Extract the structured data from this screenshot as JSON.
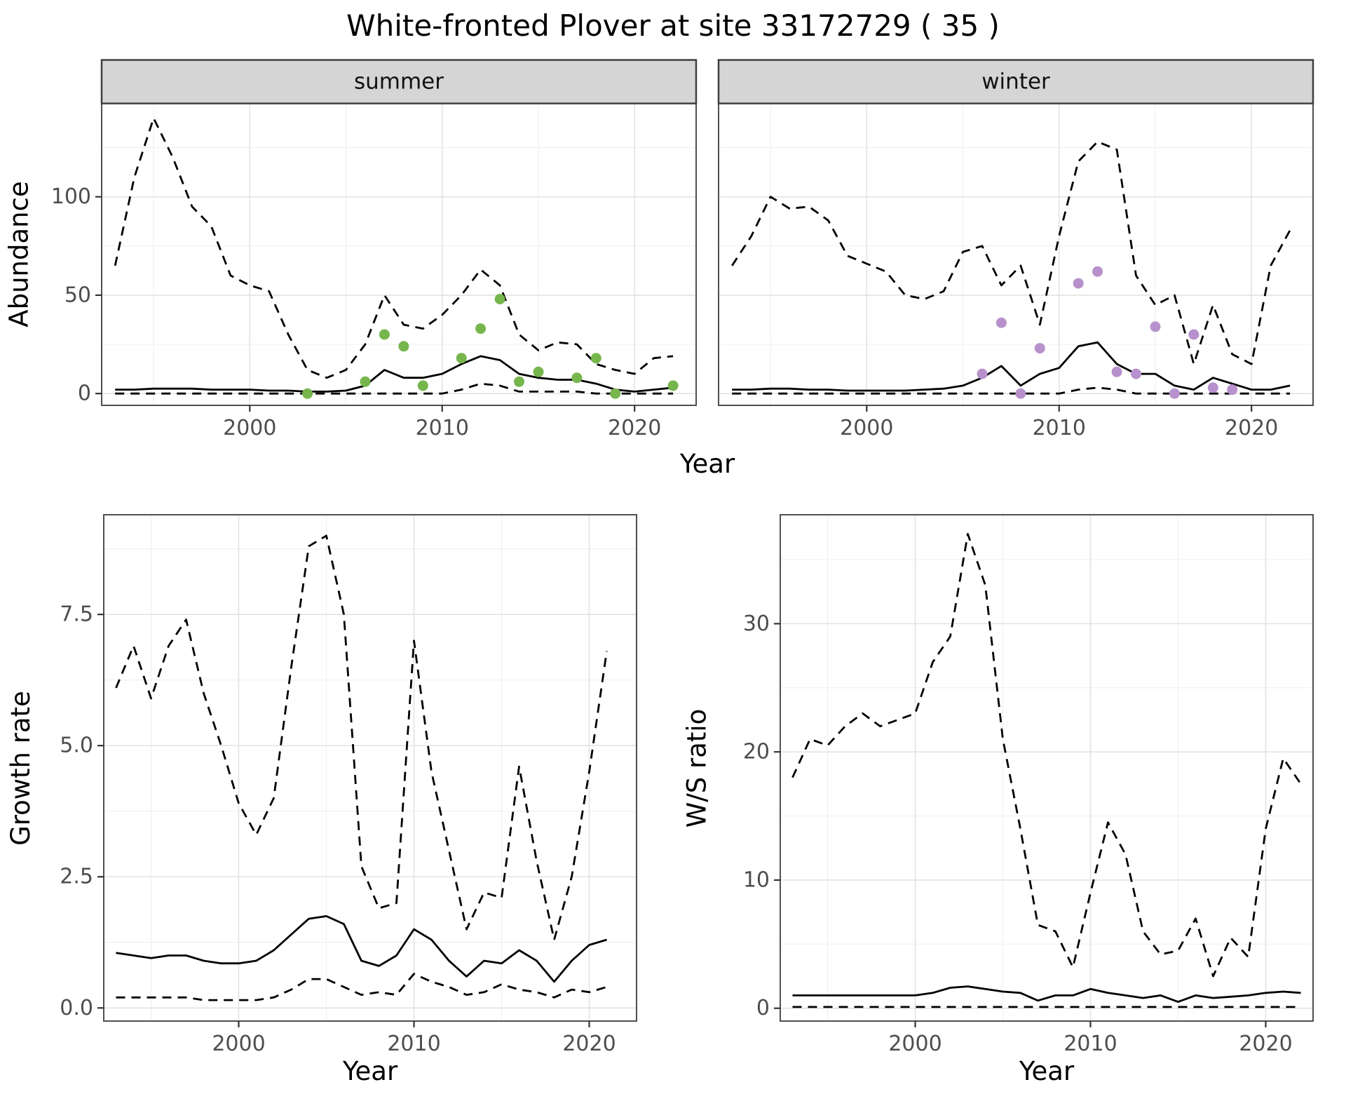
{
  "title": "White-fronted Plover at site 33172729 ( 35 )",
  "axes": {
    "abundance": "Abundance",
    "year": "Year",
    "growth_rate": "Growth rate",
    "ws_ratio": "W/S ratio"
  },
  "theme": {
    "strip_bg": "#d5d5d5",
    "strip_border": "#3f3f3f",
    "panel_border": "#4f4f4f",
    "grid_major": "#e3e3e3",
    "grid_minor": "#f0f0f0",
    "line": "#000000",
    "tick_text": "#4d4d4d",
    "tick_mark": "#333333",
    "summer_point": "#76b64c",
    "winter_point": "#b891cc"
  },
  "chart_data": [
    {
      "id": "abundance-summer",
      "type": "line",
      "facet": "summer",
      "xlabel": "Year",
      "ylabel": "Abundance",
      "xlim": [
        1992.3,
        2023.2
      ],
      "ylim": [
        -6,
        148
      ],
      "grid": true,
      "legend": "none",
      "xticks": [
        {
          "v": 2000,
          "label": "2000"
        },
        {
          "v": 2010,
          "label": "2010"
        },
        {
          "v": 2020,
          "label": "2020"
        }
      ],
      "yticks": [
        {
          "v": 0,
          "label": "0"
        },
        {
          "v": 50,
          "label": "50"
        },
        {
          "v": 100,
          "label": "100"
        }
      ],
      "xticks_minor": [
        1995,
        2005,
        2015
      ],
      "yticks_minor": [
        25,
        75,
        125
      ],
      "x": [
        1993,
        1994,
        1995,
        1996,
        1997,
        1998,
        1999,
        2000,
        2001,
        2002,
        2003,
        2004,
        2005,
        2006,
        2007,
        2008,
        2009,
        2010,
        2011,
        2012,
        2013,
        2014,
        2015,
        2016,
        2017,
        2018,
        2019,
        2020,
        2021,
        2022
      ],
      "series": [
        {
          "name": "upper_95ci",
          "style": "dashed",
          "values": [
            65,
            110,
            140,
            120,
            95,
            85,
            60,
            55,
            52,
            30,
            12,
            8,
            12,
            25,
            50,
            35,
            33,
            40,
            50,
            63,
            55,
            30,
            22,
            26,
            25,
            15,
            12,
            10,
            18,
            19
          ]
        },
        {
          "name": "median",
          "style": "solid",
          "values": [
            2,
            2,
            2.5,
            2.5,
            2.5,
            2,
            2,
            2,
            1.5,
            1.5,
            1,
            1,
            1.5,
            4,
            12,
            8,
            8,
            10,
            15,
            19,
            17,
            10,
            8,
            7,
            7,
            5,
            2,
            1,
            2,
            3
          ]
        },
        {
          "name": "lower_95ci",
          "style": "dashed",
          "values": [
            0,
            0,
            0,
            0,
            0,
            0,
            0,
            0,
            0,
            0,
            0,
            0,
            0,
            0,
            0,
            0,
            0,
            0,
            2,
            5,
            4,
            1,
            1,
            1,
            1,
            0,
            0,
            0,
            0,
            0
          ]
        }
      ],
      "points": {
        "name": "observed-count",
        "color_key": "summer_point",
        "x": [
          2003,
          2006,
          2007,
          2008,
          2009,
          2011,
          2012,
          2013,
          2014,
          2015,
          2017,
          2018,
          2019,
          2022
        ],
        "y": [
          0,
          6,
          30,
          24,
          4,
          18,
          33,
          48,
          6,
          11,
          8,
          18,
          0,
          4
        ]
      }
    },
    {
      "id": "abundance-winter",
      "type": "line",
      "facet": "winter",
      "xlabel": "Year",
      "ylabel": "Abundance",
      "xlim": [
        1992.3,
        2023.2
      ],
      "ylim": [
        -6,
        148
      ],
      "grid": true,
      "legend": "none",
      "xticks": [
        {
          "v": 2000,
          "label": "2000"
        },
        {
          "v": 2010,
          "label": "2010"
        },
        {
          "v": 2020,
          "label": "2020"
        }
      ],
      "yticks": [
        {
          "v": 0,
          "label": "0"
        },
        {
          "v": 50,
          "label": "50"
        },
        {
          "v": 100,
          "label": "100"
        }
      ],
      "xticks_minor": [
        1995,
        2005,
        2015
      ],
      "yticks_minor": [
        25,
        75,
        125
      ],
      "x": [
        1993,
        1994,
        1995,
        1996,
        1997,
        1998,
        1999,
        2000,
        2001,
        2002,
        2003,
        2004,
        2005,
        2006,
        2007,
        2008,
        2009,
        2010,
        2011,
        2012,
        2013,
        2014,
        2015,
        2016,
        2017,
        2018,
        2019,
        2020,
        2021,
        2022
      ],
      "series": [
        {
          "name": "upper_95ci",
          "style": "dashed",
          "values": [
            65,
            80,
            100,
            94,
            95,
            88,
            70,
            66,
            62,
            50,
            48,
            52,
            72,
            75,
            55,
            65,
            35,
            80,
            118,
            128,
            124,
            60,
            45,
            50,
            15,
            45,
            20,
            15,
            65,
            83
          ]
        },
        {
          "name": "median",
          "style": "solid",
          "values": [
            2,
            2,
            2.5,
            2.5,
            2,
            2,
            1.5,
            1.5,
            1.5,
            1.5,
            2,
            2.5,
            4,
            8,
            14,
            4,
            10,
            13,
            24,
            26,
            15,
            10,
            10,
            4,
            2,
            8,
            5,
            2,
            2,
            4
          ]
        },
        {
          "name": "lower_95ci",
          "style": "dashed",
          "values": [
            0,
            0,
            0,
            0,
            0,
            0,
            0,
            0,
            0,
            0,
            0,
            0,
            0,
            0,
            0,
            0,
            0,
            0,
            2,
            3,
            2,
            0,
            0,
            0,
            0,
            0,
            0,
            0,
            0,
            0
          ]
        }
      ],
      "points": {
        "name": "observed-count",
        "color_key": "winter_point",
        "x": [
          2006,
          2007,
          2008,
          2009,
          2011,
          2012,
          2013,
          2014,
          2015,
          2016,
          2017,
          2018,
          2019
        ],
        "y": [
          10,
          36,
          0,
          23,
          56,
          62,
          11,
          10,
          34,
          0,
          30,
          3,
          2
        ]
      }
    },
    {
      "id": "growth-rate",
      "type": "line",
      "facet": null,
      "xlabel": "Year",
      "ylabel": "Growth rate",
      "xlim": [
        1992.3,
        2022.7
      ],
      "ylim": [
        -0.25,
        9.4
      ],
      "grid": true,
      "legend": "none",
      "xticks": [
        {
          "v": 2000,
          "label": "2000"
        },
        {
          "v": 2010,
          "label": "2010"
        },
        {
          "v": 2020,
          "label": "2020"
        }
      ],
      "yticks": [
        {
          "v": 0,
          "label": "0.0"
        },
        {
          "v": 2.5,
          "label": "2.5"
        },
        {
          "v": 5,
          "label": "5.0"
        },
        {
          "v": 7.5,
          "label": "7.5"
        }
      ],
      "xticks_minor": [
        1995,
        2005,
        2015
      ],
      "yticks_minor": [
        1.25,
        3.75,
        6.25,
        8.75
      ],
      "x": [
        1993,
        1994,
        1995,
        1996,
        1997,
        1998,
        1999,
        2000,
        2001,
        2002,
        2003,
        2004,
        2005,
        2006,
        2007,
        2008,
        2009,
        2010,
        2011,
        2012,
        2013,
        2014,
        2015,
        2016,
        2017,
        2018,
        2019,
        2020,
        2021
      ],
      "series": [
        {
          "name": "upper_95ci",
          "style": "dashed",
          "values": [
            6.1,
            6.9,
            5.9,
            6.9,
            7.4,
            6.0,
            5.0,
            3.9,
            3.3,
            4.0,
            6.5,
            8.8,
            9.0,
            7.5,
            2.7,
            1.9,
            2.0,
            7.0,
            4.5,
            3.0,
            1.5,
            2.2,
            2.1,
            4.6,
            2.8,
            1.3,
            2.5,
            4.5,
            6.8
          ]
        },
        {
          "name": "median",
          "style": "solid",
          "values": [
            1.05,
            1.0,
            0.95,
            1.0,
            1.0,
            0.9,
            0.85,
            0.85,
            0.9,
            1.1,
            1.4,
            1.7,
            1.75,
            1.6,
            0.9,
            0.8,
            1.0,
            1.5,
            1.3,
            0.9,
            0.6,
            0.9,
            0.85,
            1.1,
            0.9,
            0.5,
            0.9,
            1.2,
            1.3
          ]
        },
        {
          "name": "lower_95ci",
          "style": "dashed",
          "values": [
            0.2,
            0.2,
            0.2,
            0.2,
            0.2,
            0.15,
            0.15,
            0.15,
            0.15,
            0.2,
            0.35,
            0.55,
            0.55,
            0.4,
            0.25,
            0.3,
            0.25,
            0.65,
            0.5,
            0.4,
            0.25,
            0.3,
            0.45,
            0.35,
            0.3,
            0.2,
            0.35,
            0.3,
            0.4
          ]
        }
      ],
      "points": null
    },
    {
      "id": "ws-ratio",
      "type": "line",
      "facet": null,
      "xlabel": "Year",
      "ylabel": "W/S ratio",
      "xlim": [
        1992.3,
        2022.7
      ],
      "ylim": [
        -1,
        38.5
      ],
      "grid": true,
      "legend": "none",
      "xticks": [
        {
          "v": 2000,
          "label": "2000"
        },
        {
          "v": 2010,
          "label": "2010"
        },
        {
          "v": 2020,
          "label": "2020"
        }
      ],
      "yticks": [
        {
          "v": 0,
          "label": "0"
        },
        {
          "v": 10,
          "label": "10"
        },
        {
          "v": 20,
          "label": "20"
        },
        {
          "v": 30,
          "label": "30"
        }
      ],
      "xticks_minor": [
        1995,
        2005,
        2015
      ],
      "yticks_minor": [
        5,
        15,
        25,
        35
      ],
      "x": [
        1993,
        1994,
        1995,
        1996,
        1997,
        1998,
        1999,
        2000,
        2001,
        2002,
        2003,
        2004,
        2005,
        2006,
        2007,
        2008,
        2009,
        2010,
        2011,
        2012,
        2013,
        2014,
        2015,
        2016,
        2017,
        2018,
        2019,
        2020,
        2021,
        2022
      ],
      "series": [
        {
          "name": "upper_95ci",
          "style": "dashed",
          "values": [
            18,
            21,
            20.5,
            22,
            23,
            22,
            22.5,
            23,
            27,
            29,
            37,
            33,
            21,
            14,
            6.5,
            6,
            3.2,
            9,
            14.5,
            12,
            6,
            4.2,
            4.5,
            7,
            2.5,
            5.5,
            4,
            14,
            19.5,
            17.5
          ]
        },
        {
          "name": "median",
          "style": "solid",
          "values": [
            1,
            1,
            1,
            1,
            1,
            1,
            1,
            1,
            1.2,
            1.6,
            1.7,
            1.5,
            1.3,
            1.2,
            0.6,
            1,
            1,
            1.5,
            1.2,
            1,
            0.8,
            1,
            0.5,
            1,
            0.8,
            0.9,
            1,
            1.2,
            1.3,
            1.2
          ]
        },
        {
          "name": "lower_95ci",
          "style": "dashed",
          "values": [
            0.1,
            0.1,
            0.1,
            0.1,
            0.1,
            0.1,
            0.1,
            0.1,
            0.1,
            0.1,
            0.1,
            0.1,
            0.1,
            0.1,
            0.1,
            0.1,
            0.1,
            0.1,
            0.1,
            0.1,
            0.1,
            0.1,
            0.1,
            0.1,
            0.1,
            0.1,
            0.1,
            0.1,
            0.1,
            0.1
          ]
        }
      ],
      "points": null
    }
  ]
}
